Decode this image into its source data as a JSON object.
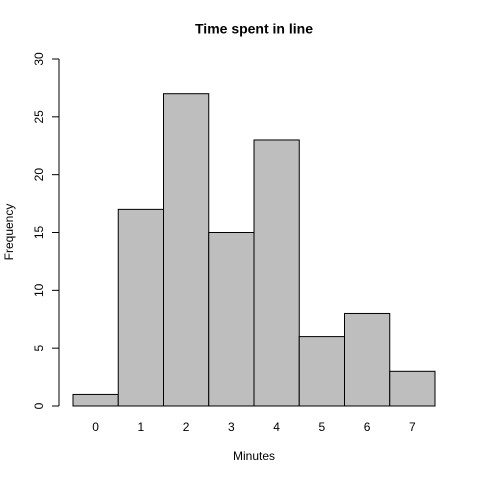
{
  "chart_data": {
    "type": "bar",
    "title": "Time spent in line",
    "x_label": "Minutes",
    "y_label": "Frequency",
    "categories": [
      "0",
      "1",
      "2",
      "3",
      "4",
      "5",
      "6",
      "7"
    ],
    "values": [
      1,
      17,
      27,
      15,
      23,
      6,
      8,
      3
    ],
    "color": "#bebebe",
    "ylim": [
      0,
      30
    ],
    "yticks": [
      0,
      5,
      10,
      15,
      20,
      25,
      30
    ],
    "grid": false
  }
}
